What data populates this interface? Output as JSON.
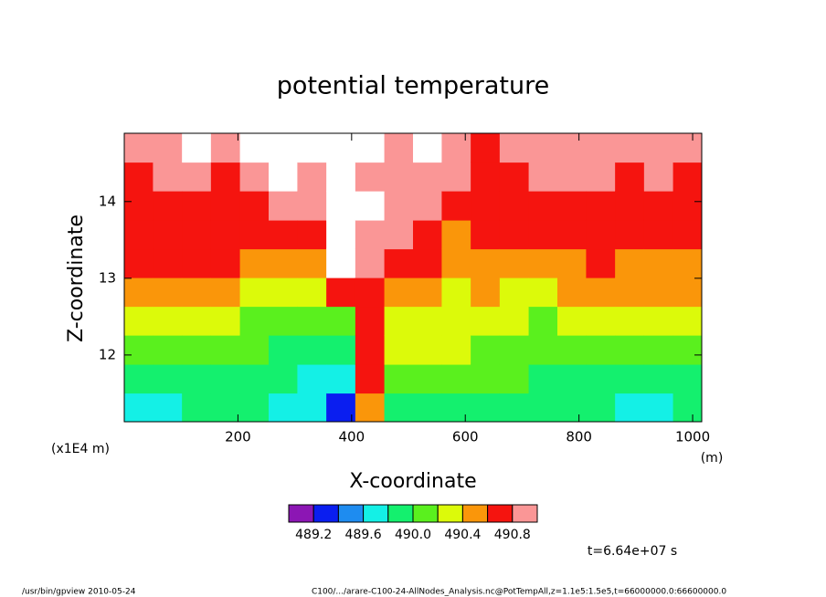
{
  "chart_data": {
    "type": "contour",
    "title": "potential temperature",
    "x_label": "X-coordinate",
    "y_label": "Z-coordinate",
    "x_unit": "(m)",
    "y_unit": "(x1E4 m)",
    "xlim": [
      0,
      1016
    ],
    "ylim": [
      11.13,
      14.89
    ],
    "xticks": [
      200,
      400,
      600,
      800,
      1000
    ],
    "yticks": [
      12,
      13,
      14
    ],
    "x": [
      25,
      76,
      127,
      178,
      229,
      279,
      330,
      381,
      432,
      483,
      533,
      584,
      635,
      686,
      737,
      787,
      838,
      889,
      940,
      991
    ],
    "y": [
      11.32,
      11.69,
      12.07,
      12.45,
      12.82,
      13.2,
      13.57,
      13.95,
      14.33,
      14.7
    ],
    "z": [
      [
        489.7,
        489.9,
        490.1,
        490.3,
        490.5,
        490.6,
        490.7,
        490.7,
        490.7,
        490.9
      ],
      [
        489.7,
        489.9,
        490.1,
        490.3,
        490.5,
        490.7,
        490.7,
        490.7,
        490.9,
        490.9
      ],
      [
        489.9,
        489.9,
        490.1,
        490.3,
        490.5,
        490.7,
        490.7,
        490.7,
        490.9,
        491.1
      ],
      [
        489.9,
        489.9,
        490.1,
        490.3,
        490.5,
        490.7,
        490.7,
        490.7,
        490.7,
        490.9
      ],
      [
        489.9,
        489.9,
        490.1,
        490.1,
        490.3,
        490.5,
        490.7,
        490.7,
        490.9,
        491.1
      ],
      [
        489.7,
        489.9,
        489.9,
        490.1,
        490.3,
        490.5,
        490.7,
        490.9,
        491.1,
        491.1
      ],
      [
        489.7,
        489.7,
        489.9,
        490.1,
        490.3,
        490.5,
        490.7,
        490.9,
        490.9,
        491.1
      ],
      [
        489.3,
        489.7,
        489.9,
        490.1,
        490.7,
        491.1,
        491.1,
        491.1,
        491.1,
        491.1
      ],
      [
        490.5,
        490.7,
        490.7,
        490.7,
        490.7,
        490.9,
        490.9,
        491.1,
        490.9,
        491.1
      ],
      [
        489.9,
        490.1,
        490.3,
        490.3,
        490.5,
        490.7,
        490.9,
        490.9,
        490.9,
        490.9
      ],
      [
        489.9,
        490.1,
        490.3,
        490.3,
        490.5,
        490.7,
        490.7,
        490.9,
        490.9,
        491.1
      ],
      [
        489.9,
        490.1,
        490.3,
        490.3,
        490.3,
        490.5,
        490.5,
        490.7,
        490.9,
        490.9
      ],
      [
        489.9,
        490.1,
        490.1,
        490.3,
        490.5,
        490.5,
        490.7,
        490.7,
        490.7,
        490.7
      ],
      [
        489.9,
        490.1,
        490.1,
        490.3,
        490.3,
        490.5,
        490.7,
        490.7,
        490.7,
        490.9
      ],
      [
        489.9,
        489.9,
        490.1,
        490.1,
        490.3,
        490.5,
        490.7,
        490.7,
        490.9,
        490.9
      ],
      [
        489.9,
        489.9,
        490.1,
        490.3,
        490.5,
        490.5,
        490.7,
        490.7,
        490.9,
        490.9
      ],
      [
        489.9,
        489.9,
        490.1,
        490.3,
        490.5,
        490.7,
        490.7,
        490.7,
        490.9,
        490.9
      ],
      [
        489.7,
        489.9,
        490.1,
        490.3,
        490.5,
        490.5,
        490.7,
        490.7,
        490.7,
        490.9
      ],
      [
        489.7,
        489.9,
        490.1,
        490.3,
        490.5,
        490.5,
        490.7,
        490.7,
        490.9,
        490.9
      ],
      [
        489.9,
        489.9,
        490.1,
        490.3,
        490.5,
        490.5,
        490.7,
        490.7,
        490.7,
        490.9
      ]
    ],
    "levels": [
      489.2,
      489.4,
      489.6,
      489.8,
      490.0,
      490.2,
      490.4,
      490.6,
      490.8,
      491.0
    ],
    "colors": [
      "#8c16b4",
      "#0a1ef0",
      "#1e8cf0",
      "#14f0e6",
      "#14f06e",
      "#5af01e",
      "#dcfa0a",
      "#fa960a",
      "#f5140f",
      "#fa9696",
      "#ffffff"
    ],
    "colorbar_ticks": [
      489.2,
      489.6,
      {
        "value": 490.0,
        "label": "490.0"
      },
      490.4,
      490.8
    ],
    "annotation": "t=6.64e+07 s",
    "footer_left": "/usr/bin/gpview   2010-05-24",
    "footer_right": "C100/.../arare-C100-24-AllNodes_Analysis.nc@PotTempAll,z=1.1e5:1.5e5,t=66000000.0:66600000.0"
  }
}
